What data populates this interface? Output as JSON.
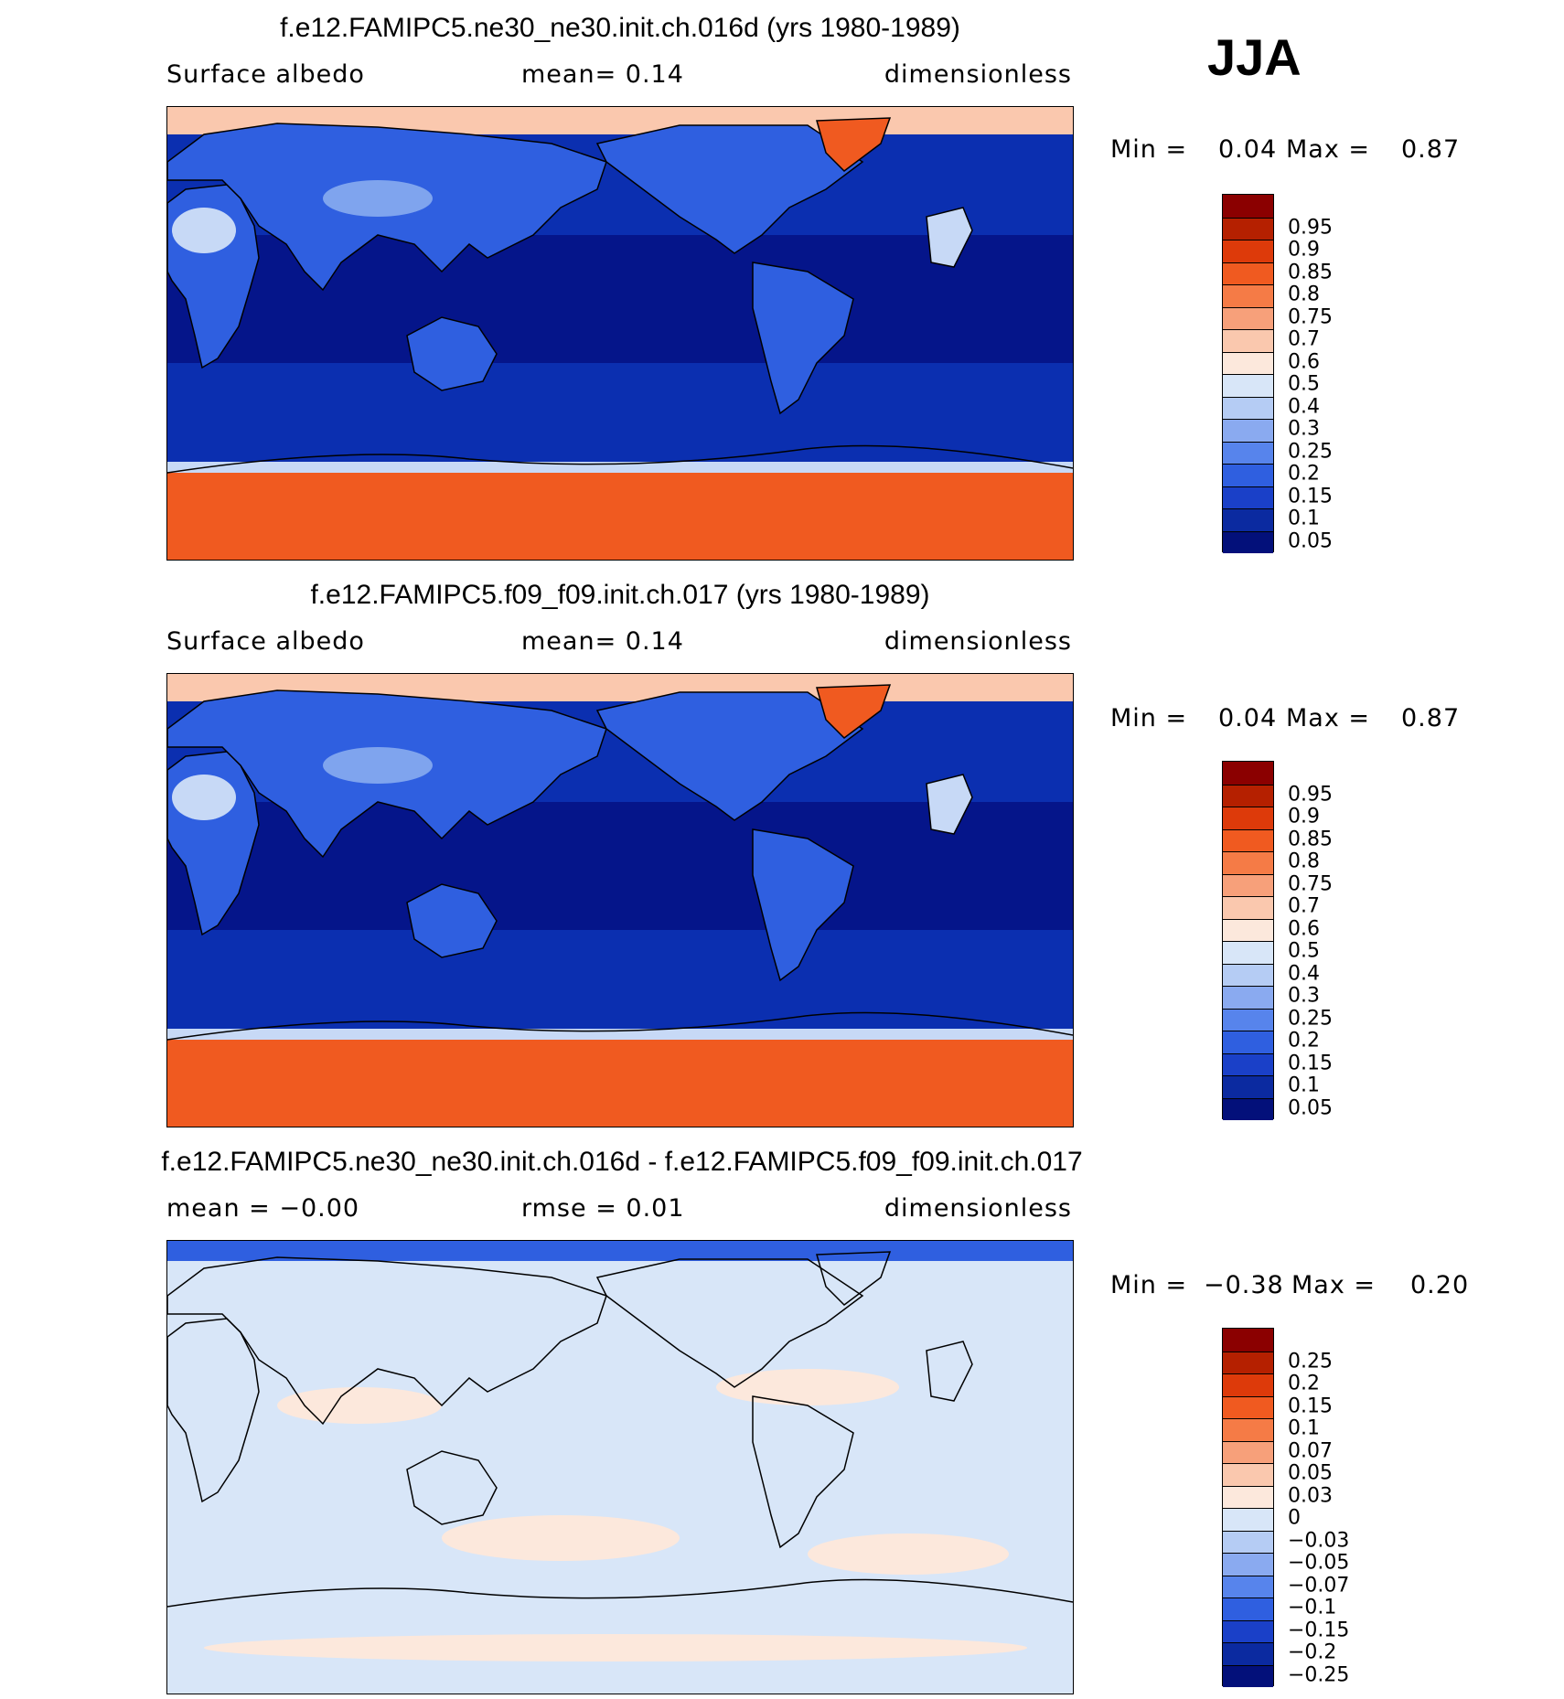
{
  "season": "JJA",
  "panels": [
    {
      "title": "f.e12.FAMIPC5.ne30_ne30.init.ch.016d (yrs 1980-1989)",
      "left_label": "Surface albedo",
      "center_label": "mean=    0.14",
      "right_label": "dimensionless",
      "min_label": "Min =",
      "min_value": "0.04",
      "max_label": "Max =",
      "max_value": "0.87",
      "colorbar_labels": [
        "0.95",
        "0.9",
        "0.85",
        "0.8",
        "0.75",
        "0.7",
        "0.6",
        "0.5",
        "0.4",
        "0.3",
        "0.25",
        "0.2",
        "0.15",
        "0.1",
        "0.05"
      ],
      "colorbar_colors": [
        "#8b0000",
        "#b52000",
        "#dd3a0a",
        "#f05a20",
        "#f57b46",
        "#f7a07a",
        "#fac8ae",
        "#fce8dc",
        "#d8e6f8",
        "#b5ccf4",
        "#8aaaf0",
        "#5784ec",
        "#2f5fe0",
        "#1a40c8",
        "#0b2aa0",
        "#03107a"
      ]
    },
    {
      "title": "f.e12.FAMIPC5.f09_f09.init.ch.017 (yrs 1980-1989)",
      "left_label": "Surface albedo",
      "center_label": "mean=    0.14",
      "right_label": "dimensionless",
      "min_label": "Min =",
      "min_value": "0.04",
      "max_label": "Max =",
      "max_value": "0.87",
      "colorbar_labels": [
        "0.95",
        "0.9",
        "0.85",
        "0.8",
        "0.75",
        "0.7",
        "0.6",
        "0.5",
        "0.4",
        "0.3",
        "0.25",
        "0.2",
        "0.15",
        "0.1",
        "0.05"
      ],
      "colorbar_colors": [
        "#8b0000",
        "#b52000",
        "#dd3a0a",
        "#f05a20",
        "#f57b46",
        "#f7a07a",
        "#fac8ae",
        "#fce8dc",
        "#d8e6f8",
        "#b5ccf4",
        "#8aaaf0",
        "#5784ec",
        "#2f5fe0",
        "#1a40c8",
        "#0b2aa0",
        "#03107a"
      ]
    },
    {
      "title": "f.e12.FAMIPC5.ne30_ne30.init.ch.016d - f.e12.FAMIPC5.f09_f09.init.ch.017",
      "left_label": "mean =   −0.00",
      "center_label": "rmse =    0.01",
      "right_label": "dimensionless",
      "min_label": "Min =",
      "min_value": "−0.38",
      "max_label": "Max =",
      "max_value": "0.20",
      "colorbar_labels": [
        "0.25",
        "0.2",
        "0.15",
        "0.1",
        "0.07",
        "0.05",
        "0.03",
        "0",
        "−0.03",
        "−0.05",
        "−0.07",
        "−0.1",
        "−0.15",
        "−0.2",
        "−0.25"
      ],
      "colorbar_colors": [
        "#8b0000",
        "#b52000",
        "#dd3a0a",
        "#f05a20",
        "#f57b46",
        "#f7a07a",
        "#fac8ae",
        "#fce8dc",
        "#d8e6f8",
        "#b5ccf4",
        "#8aaaf0",
        "#5784ec",
        "#2f5fe0",
        "#1a40c8",
        "#0b2aa0",
        "#03107a"
      ]
    }
  ],
  "map_colors": {
    "ocean_deep": "#05158a",
    "ocean": "#0b2fb0",
    "land": "#2f5fe0",
    "land_bright": "#7fa4ee",
    "desert": "#c7d9f6",
    "ice_sheet": "#f05a20",
    "ice_edge": "#fac8ae",
    "diff_neg": "#d8e6f8",
    "diff_pos": "#fce8dc"
  }
}
